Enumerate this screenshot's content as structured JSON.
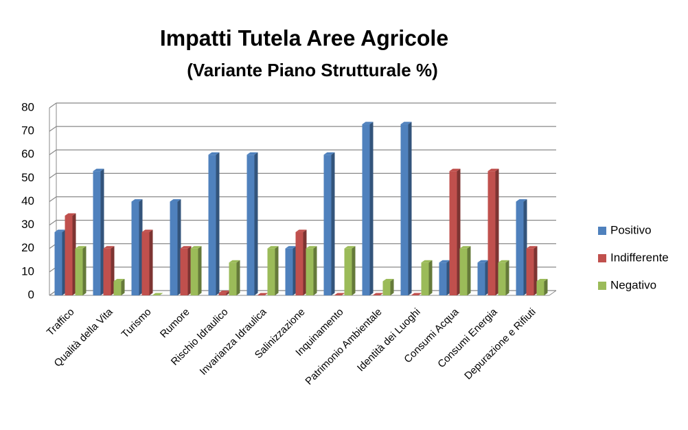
{
  "chart_data": {
    "type": "bar",
    "title": "Impatti Tutela Aree Agricole",
    "subtitle": "(Variante Piano Strutturale %)",
    "categories": [
      "Traffico",
      "Qualità della Vita",
      "Turismo",
      "Rumore",
      "Rischio Idraulico",
      "Invarianza Idraulica",
      "Salinizzazione",
      "Inquinamento",
      "Patrimonio Ambientale",
      "Identità dei Luoghi",
      "Consumi Acqua",
      "Consumi Energia",
      "Depurazione e Rifiuti"
    ],
    "series": [
      {
        "name": "Positivo",
        "color": "#4f81bd",
        "values": [
          27,
          53,
          40,
          40,
          60,
          60,
          20,
          60,
          73,
          73,
          14,
          14,
          40
        ]
      },
      {
        "name": "Indifferente",
        "color": "#c0504d",
        "values": [
          34,
          20,
          27,
          20,
          1,
          0,
          27,
          0,
          0,
          0,
          53,
          53,
          20
        ]
      },
      {
        "name": "Negativo",
        "color": "#9bbb59",
        "values": [
          20,
          6,
          0,
          20,
          14,
          20,
          20,
          20,
          6,
          14,
          20,
          14,
          6
        ]
      }
    ],
    "ylim": [
      0,
      80
    ],
    "yticks": [
      0,
      10,
      20,
      30,
      40,
      50,
      60,
      70,
      80
    ],
    "grid": true,
    "legend": "right"
  }
}
